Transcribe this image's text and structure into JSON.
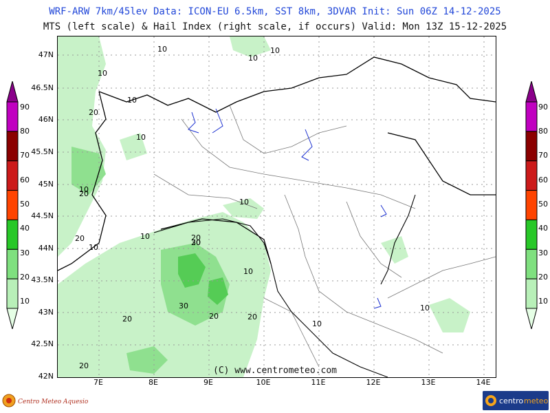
{
  "header": {
    "line1": "WRF-ARW 7km/45lev   Data: ICON-EU 6.5km, SST 8km, 3DVAR   Init: Sun 06Z 14-12-2025",
    "line2": "MTS (left scale) & Hail Index (right scale, if occurs) Valid: Mon 13Z 15-12-2025"
  },
  "map": {
    "lat_labels": [
      "47N",
      "46.5N",
      "46N",
      "45.5N",
      "45N",
      "44.5N",
      "44N",
      "43.5N",
      "43N",
      "42.5N",
      "42N"
    ],
    "lon_labels": [
      "7E",
      "8E",
      "9E",
      "10E",
      "11E",
      "12E",
      "13E",
      "14E"
    ],
    "contour_labels": [
      "10",
      "10",
      "10",
      "10",
      "10",
      "20",
      "10",
      "10",
      "20",
      "20",
      "10",
      "10",
      "20",
      "10",
      "20",
      "30",
      "10",
      "30",
      "20",
      "20",
      "20",
      "10",
      "10",
      "20"
    ]
  },
  "colorbar_left": {
    "levels": [
      "10",
      "20",
      "30",
      "40",
      "50",
      "60",
      "70",
      "80",
      "90"
    ],
    "colors": [
      "#e6ffe6",
      "#b8f0b8",
      "#7fe07f",
      "#28c828",
      "#ff4400",
      "#cc1a1a",
      "#8b0000",
      "#c000c0",
      "#8a008a"
    ]
  },
  "colorbar_right": {
    "levels": [
      "10",
      "20",
      "30",
      "40",
      "50",
      "60",
      "70",
      "80",
      "90"
    ],
    "colors": [
      "#e6ffe6",
      "#b8f0b8",
      "#7fe07f",
      "#28c828",
      "#ff4400",
      "#cc1a1a",
      "#8b0000",
      "#c000c0",
      "#8a008a"
    ]
  },
  "footer": {
    "copyright": "(C) www.centrometeo.com",
    "logo_left": "Centro Meteo Aquesio",
    "logo_right": "centrometeo"
  }
}
